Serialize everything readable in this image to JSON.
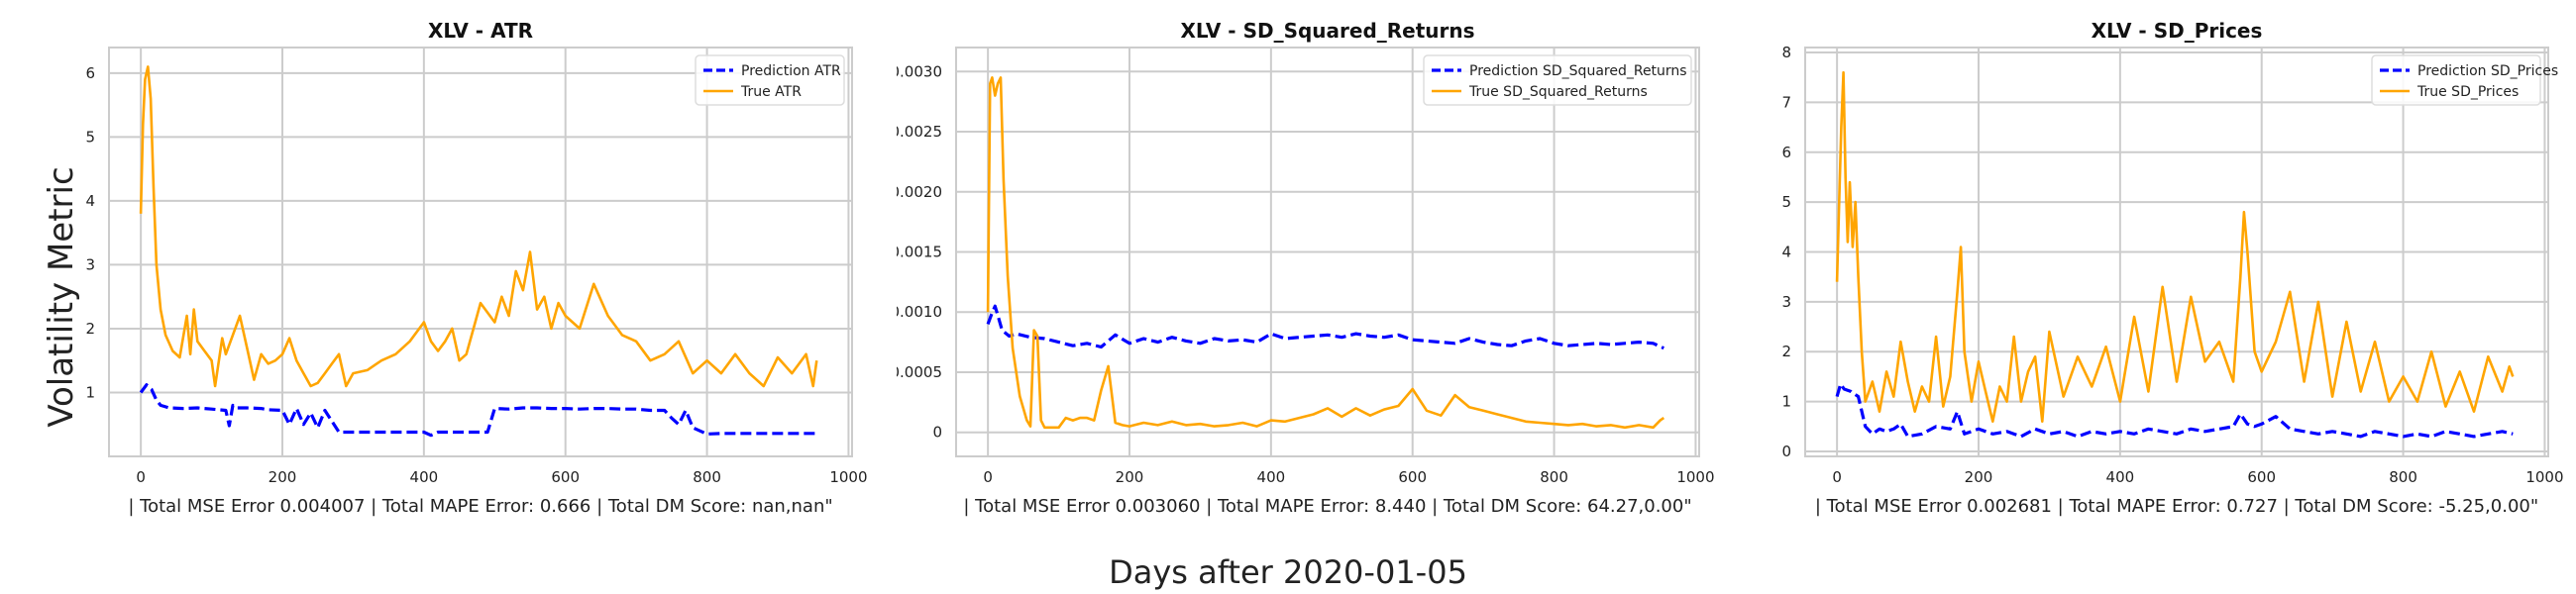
{
  "figure": {
    "ylabel": "Volatility Metric",
    "xlabel": "Days after 2020-01-05"
  },
  "chart_data": [
    {
      "type": "line",
      "title": "XLV - ATR",
      "xlabel": "| Total MSE Error 0.004007 | Total MAPE Error: 0.666 | Total DM Score: nan,nan\"",
      "ylabel": "",
      "xlim": [
        -45,
        1005
      ],
      "ylim": [
        0,
        6.4
      ],
      "xticks": [
        0,
        200,
        400,
        600,
        800,
        1000
      ],
      "yticks": [
        1,
        2,
        3,
        4,
        5,
        6
      ],
      "grid": true,
      "legend": "top-right",
      "series": [
        {
          "name": "Prediction ATR",
          "style": "dashed",
          "color": "#0000ff",
          "x": [
            0,
            8,
            15,
            22,
            28,
            40,
            60,
            80,
            100,
            120,
            125,
            130,
            135,
            150,
            170,
            180,
            200,
            210,
            220,
            230,
            240,
            250,
            260,
            280,
            290,
            300,
            320,
            340,
            360,
            380,
            400,
            410,
            420,
            440,
            460,
            480,
            490,
            500,
            520,
            540,
            560,
            580,
            600,
            620,
            640,
            660,
            680,
            700,
            720,
            740,
            750,
            760,
            770,
            780,
            790,
            800,
            820,
            850,
            880,
            900,
            920,
            950,
            955
          ],
          "y": [
            1.0,
            1.12,
            1.05,
            0.88,
            0.8,
            0.76,
            0.75,
            0.76,
            0.74,
            0.72,
            0.48,
            0.8,
            0.76,
            0.76,
            0.75,
            0.73,
            0.72,
            0.5,
            0.75,
            0.5,
            0.68,
            0.45,
            0.72,
            0.38,
            0.38,
            0.38,
            0.38,
            0.38,
            0.38,
            0.38,
            0.38,
            0.33,
            0.38,
            0.38,
            0.38,
            0.38,
            0.38,
            0.75,
            0.74,
            0.76,
            0.76,
            0.75,
            0.75,
            0.74,
            0.75,
            0.75,
            0.74,
            0.74,
            0.72,
            0.72,
            0.6,
            0.5,
            0.72,
            0.45,
            0.4,
            0.35,
            0.36,
            0.36,
            0.36,
            0.36,
            0.36,
            0.36,
            0.36
          ]
        },
        {
          "name": "True ATR",
          "style": "solid",
          "color": "#ffa500",
          "x": [
            0,
            3,
            6,
            10,
            14,
            18,
            22,
            28,
            35,
            45,
            55,
            65,
            70,
            75,
            80,
            90,
            100,
            105,
            115,
            120,
            130,
            140,
            150,
            160,
            170,
            180,
            190,
            200,
            210,
            220,
            230,
            240,
            250,
            260,
            270,
            280,
            290,
            300,
            320,
            340,
            360,
            380,
            400,
            410,
            420,
            430,
            440,
            450,
            460,
            470,
            480,
            500,
            510,
            520,
            530,
            540,
            550,
            560,
            570,
            580,
            590,
            600,
            620,
            640,
            660,
            680,
            700,
            720,
            740,
            760,
            780,
            800,
            820,
            840,
            860,
            880,
            900,
            920,
            940,
            950,
            955
          ],
          "y": [
            3.8,
            5.2,
            5.9,
            6.1,
            5.6,
            4.2,
            3.0,
            2.3,
            1.9,
            1.65,
            1.55,
            2.2,
            1.6,
            2.3,
            1.8,
            1.65,
            1.5,
            1.1,
            1.85,
            1.6,
            1.9,
            2.2,
            1.7,
            1.2,
            1.6,
            1.45,
            1.5,
            1.6,
            1.85,
            1.5,
            1.3,
            1.1,
            1.15,
            1.3,
            1.45,
            1.6,
            1.1,
            1.3,
            1.35,
            1.5,
            1.6,
            1.8,
            2.1,
            1.8,
            1.65,
            1.8,
            2.0,
            1.5,
            1.6,
            2.0,
            2.4,
            2.1,
            2.5,
            2.2,
            2.9,
            2.6,
            3.2,
            2.3,
            2.5,
            2.0,
            2.4,
            2.2,
            2.0,
            2.7,
            2.2,
            1.9,
            1.8,
            1.5,
            1.6,
            1.8,
            1.3,
            1.5,
            1.3,
            1.6,
            1.3,
            1.1,
            1.55,
            1.3,
            1.6,
            1.1,
            1.5
          ]
        }
      ]
    },
    {
      "type": "line",
      "title": "XLV - SD_Squared_Returns",
      "xlabel": "| Total MSE Error 0.003060 | Total MAPE Error: 8.440 | Total DM Score: 64.27,0.00\"",
      "ylabel": "",
      "xlim": [
        -45,
        1005
      ],
      "ylim": [
        -0.0002,
        0.0032
      ],
      "xticks": [
        0,
        200,
        400,
        600,
        800,
        1000
      ],
      "yticks": [
        0.0,
        0.0005,
        0.001,
        0.0015,
        0.002,
        0.0025,
        0.003
      ],
      "grid": true,
      "legend": "top-right",
      "series": [
        {
          "name": "Prediction SD_Squared_Returns",
          "style": "dashed",
          "color": "#0000ff",
          "x": [
            0,
            5,
            10,
            15,
            20,
            30,
            40,
            60,
            80,
            100,
            120,
            140,
            160,
            180,
            200,
            220,
            240,
            260,
            280,
            300,
            320,
            340,
            360,
            380,
            400,
            420,
            440,
            460,
            480,
            500,
            520,
            540,
            560,
            580,
            600,
            620,
            640,
            660,
            680,
            700,
            720,
            740,
            760,
            780,
            800,
            820,
            840,
            860,
            880,
            900,
            920,
            940,
            955
          ],
          "y": [
            0.0009,
            0.00098,
            0.00105,
            0.00095,
            0.00085,
            0.0008,
            0.00082,
            0.00079,
            0.00078,
            0.00075,
            0.00072,
            0.00074,
            0.00071,
            0.00081,
            0.00074,
            0.00078,
            0.00075,
            0.00079,
            0.00076,
            0.00074,
            0.00078,
            0.00076,
            0.00077,
            0.00075,
            0.00082,
            0.00078,
            0.00079,
            0.0008,
            0.00081,
            0.00079,
            0.00082,
            0.0008,
            0.00079,
            0.00081,
            0.00077,
            0.00076,
            0.00075,
            0.00074,
            0.00078,
            0.00075,
            0.00073,
            0.00072,
            0.00076,
            0.00078,
            0.00074,
            0.00072,
            0.00073,
            0.00074,
            0.00073,
            0.00074,
            0.00075,
            0.00074,
            0.0007
          ]
        },
        {
          "name": "True SD_Squared_Returns",
          "style": "solid",
          "color": "#ffa500",
          "x": [
            0,
            3,
            6,
            10,
            14,
            18,
            22,
            28,
            35,
            45,
            55,
            60,
            65,
            70,
            75,
            80,
            90,
            100,
            110,
            120,
            130,
            140,
            150,
            160,
            170,
            180,
            190,
            200,
            220,
            240,
            260,
            280,
            300,
            320,
            340,
            360,
            380,
            400,
            420,
            440,
            460,
            480,
            500,
            520,
            540,
            560,
            580,
            600,
            620,
            640,
            660,
            680,
            700,
            720,
            740,
            760,
            780,
            800,
            820,
            840,
            860,
            880,
            900,
            920,
            940,
            950,
            955
          ],
          "y": [
            0.001,
            0.0029,
            0.00295,
            0.0028,
            0.0029,
            0.00295,
            0.0021,
            0.0013,
            0.0007,
            0.0003,
            0.0001,
            5e-05,
            0.00085,
            0.0008,
            0.0001,
            4e-05,
            4e-05,
            4e-05,
            0.00012,
            0.0001,
            0.00012,
            0.00012,
            0.0001,
            0.00035,
            0.00055,
            8e-05,
            6e-05,
            5e-05,
            8e-05,
            6e-05,
            9e-05,
            6e-05,
            7e-05,
            5e-05,
            6e-05,
            8e-05,
            5e-05,
            0.0001,
            9e-05,
            0.00012,
            0.00015,
            0.0002,
            0.00013,
            0.0002,
            0.00014,
            0.00019,
            0.00022,
            0.00036,
            0.00018,
            0.00014,
            0.00031,
            0.00021,
            0.00018,
            0.00015,
            0.00012,
            9e-05,
            8e-05,
            7e-05,
            6e-05,
            7e-05,
            5e-05,
            6e-05,
            4e-05,
            6e-05,
            4e-05,
            0.0001,
            0.00012
          ]
        }
      ]
    },
    {
      "type": "line",
      "title": "XLV - SD_Prices",
      "xlabel": "| Total MSE Error 0.002681 | Total MAPE Error: 0.727 | Total DM Score: -5.25,0.00\"",
      "ylabel": "",
      "xlim": [
        -45,
        1005
      ],
      "ylim": [
        -0.1,
        8.1
      ],
      "xticks": [
        0,
        200,
        400,
        600,
        800,
        1000
      ],
      "yticks": [
        0,
        1,
        2,
        3,
        4,
        5,
        6,
        7,
        8
      ],
      "grid": true,
      "legend": "top-right",
      "series": [
        {
          "name": "Prediction SD_Prices",
          "style": "dashed",
          "color": "#0000ff",
          "x": [
            0,
            5,
            10,
            20,
            30,
            40,
            50,
            60,
            70,
            80,
            90,
            100,
            120,
            140,
            160,
            170,
            180,
            200,
            220,
            240,
            260,
            280,
            300,
            320,
            340,
            360,
            380,
            400,
            420,
            440,
            460,
            480,
            500,
            520,
            540,
            560,
            570,
            580,
            590,
            600,
            620,
            640,
            660,
            680,
            700,
            720,
            740,
            760,
            780,
            800,
            820,
            840,
            860,
            880,
            900,
            920,
            940,
            955
          ],
          "y": [
            1.1,
            1.35,
            1.25,
            1.2,
            1.1,
            0.5,
            0.35,
            0.45,
            0.4,
            0.45,
            0.55,
            0.3,
            0.35,
            0.5,
            0.45,
            0.8,
            0.35,
            0.45,
            0.35,
            0.4,
            0.3,
            0.45,
            0.35,
            0.4,
            0.3,
            0.4,
            0.35,
            0.4,
            0.35,
            0.45,
            0.4,
            0.35,
            0.45,
            0.4,
            0.45,
            0.5,
            0.75,
            0.55,
            0.5,
            0.55,
            0.7,
            0.45,
            0.4,
            0.35,
            0.4,
            0.35,
            0.3,
            0.4,
            0.35,
            0.3,
            0.35,
            0.3,
            0.4,
            0.35,
            0.3,
            0.35,
            0.4,
            0.35
          ]
        },
        {
          "name": "True SD_Prices",
          "style": "solid",
          "color": "#ffa500",
          "x": [
            0,
            3,
            6,
            9,
            12,
            15,
            18,
            22,
            26,
            30,
            35,
            40,
            50,
            60,
            70,
            80,
            90,
            100,
            110,
            120,
            130,
            140,
            150,
            160,
            170,
            175,
            180,
            190,
            200,
            210,
            220,
            230,
            240,
            250,
            260,
            270,
            280,
            290,
            300,
            320,
            340,
            360,
            380,
            400,
            420,
            440,
            460,
            480,
            500,
            520,
            540,
            560,
            570,
            575,
            580,
            590,
            600,
            620,
            640,
            660,
            680,
            700,
            720,
            740,
            760,
            780,
            800,
            820,
            840,
            860,
            880,
            900,
            920,
            940,
            950,
            955
          ],
          "y": [
            3.4,
            5.0,
            6.5,
            7.6,
            5.5,
            4.2,
            5.4,
            4.1,
            5.0,
            3.5,
            2.0,
            1.0,
            1.4,
            0.8,
            1.6,
            1.1,
            2.2,
            1.4,
            0.8,
            1.3,
            1.0,
            2.3,
            0.9,
            1.5,
            3.2,
            4.1,
            2.0,
            1.0,
            1.8,
            1.2,
            0.6,
            1.3,
            1.0,
            2.3,
            1.0,
            1.6,
            1.9,
            0.6,
            2.4,
            1.1,
            1.9,
            1.3,
            2.1,
            1.0,
            2.7,
            1.2,
            3.3,
            1.4,
            3.1,
            1.8,
            2.2,
            1.4,
            3.5,
            4.8,
            4.0,
            2.0,
            1.6,
            2.2,
            3.2,
            1.4,
            3.0,
            1.1,
            2.6,
            1.2,
            2.2,
            1.0,
            1.5,
            1.0,
            2.0,
            0.9,
            1.6,
            0.8,
            1.9,
            1.2,
            1.7,
            1.5
          ]
        }
      ]
    }
  ]
}
